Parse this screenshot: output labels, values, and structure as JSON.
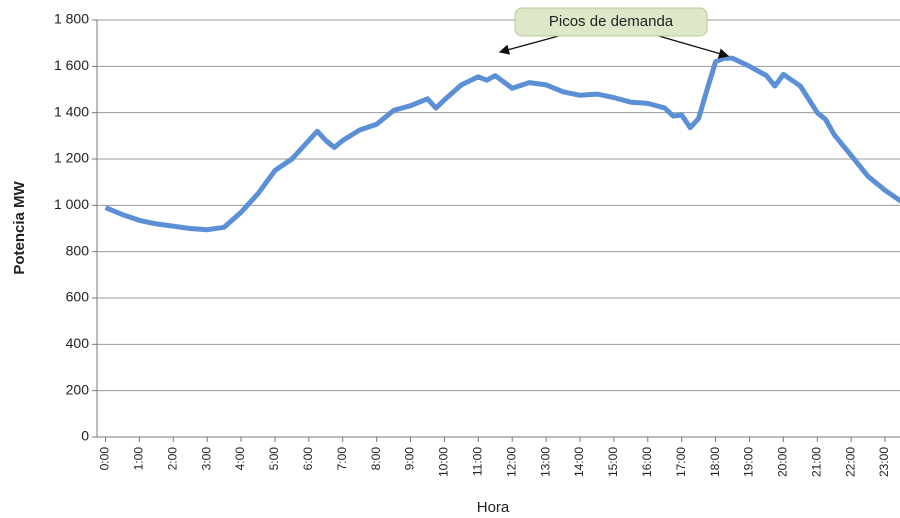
{
  "chart_data": {
    "type": "line",
    "ylabel": "Potencia MW",
    "xlabel": "Hora",
    "annotation": "Picos de demanda",
    "x": [
      0,
      0.5,
      1,
      1.5,
      2,
      2.5,
      3,
      3.5,
      4,
      4.25,
      4.5,
      5,
      5.5,
      6,
      6.25,
      6.5,
      6.75,
      7,
      7.5,
      8,
      8.5,
      9,
      9.5,
      9.75,
      10,
      10.5,
      11,
      11.25,
      11.5,
      12,
      12.5,
      13,
      13.5,
      14,
      14.5,
      15,
      15.5,
      16,
      16.5,
      16.75,
      17,
      17.25,
      17.5,
      17.75,
      18,
      18.25,
      18.5,
      19,
      19.5,
      19.75,
      20,
      20.5,
      21,
      21.25,
      21.5,
      22,
      22.5,
      23,
      23.5
    ],
    "series": [
      {
        "name": "Potencia",
        "color": "#5b8fd6",
        "values": [
          990,
          960,
          935,
          920,
          910,
          900,
          895,
          905,
          970,
          1010,
          1050,
          1150,
          1200,
          1280,
          1320,
          1280,
          1250,
          1280,
          1325,
          1350,
          1410,
          1430,
          1460,
          1420,
          1455,
          1520,
          1555,
          1540,
          1560,
          1505,
          1530,
          1520,
          1490,
          1475,
          1480,
          1465,
          1445,
          1440,
          1420,
          1385,
          1390,
          1335,
          1375,
          1500,
          1620,
          1635,
          1635,
          1600,
          1560,
          1515,
          1565,
          1515,
          1400,
          1370,
          1305,
          1215,
          1125,
          1065,
          1015
        ]
      }
    ],
    "xlim": [
      -0.25,
      23.5
    ],
    "xticks": [
      {
        "value": 0,
        "label": "0:00"
      },
      {
        "value": 1,
        "label": "1:00"
      },
      {
        "value": 2,
        "label": "2:00"
      },
      {
        "value": 3,
        "label": "3:00"
      },
      {
        "value": 4,
        "label": "4:00"
      },
      {
        "value": 5,
        "label": "5:00"
      },
      {
        "value": 6,
        "label": "6:00"
      },
      {
        "value": 7,
        "label": "7:00"
      },
      {
        "value": 8,
        "label": "8:00"
      },
      {
        "value": 9,
        "label": "9:00"
      },
      {
        "value": 10,
        "label": "10:00"
      },
      {
        "value": 11,
        "label": "11:00"
      },
      {
        "value": 12,
        "label": "12:00"
      },
      {
        "value": 13,
        "label": "13:00"
      },
      {
        "value": 14,
        "label": "14:00"
      },
      {
        "value": 15,
        "label": "15:00"
      },
      {
        "value": 16,
        "label": "16:00"
      },
      {
        "value": 17,
        "label": "17:00"
      },
      {
        "value": 18,
        "label": "18:00"
      },
      {
        "value": 19,
        "label": "19:00"
      },
      {
        "value": 20,
        "label": "20:00"
      },
      {
        "value": 21,
        "label": "21:00"
      },
      {
        "value": 22,
        "label": "22:00"
      },
      {
        "value": 23,
        "label": "23:00"
      }
    ],
    "ylim": [
      0,
      1800
    ],
    "yticks": [
      0,
      200,
      400,
      600,
      800,
      {
        "value": 1000,
        "label": "1 000"
      },
      {
        "value": 1200,
        "label": "1 200"
      },
      {
        "value": 1400,
        "label": "1 400"
      },
      {
        "value": 1600,
        "label": "1 600"
      },
      {
        "value": 1800,
        "label": "1 800"
      }
    ],
    "grid": true
  }
}
